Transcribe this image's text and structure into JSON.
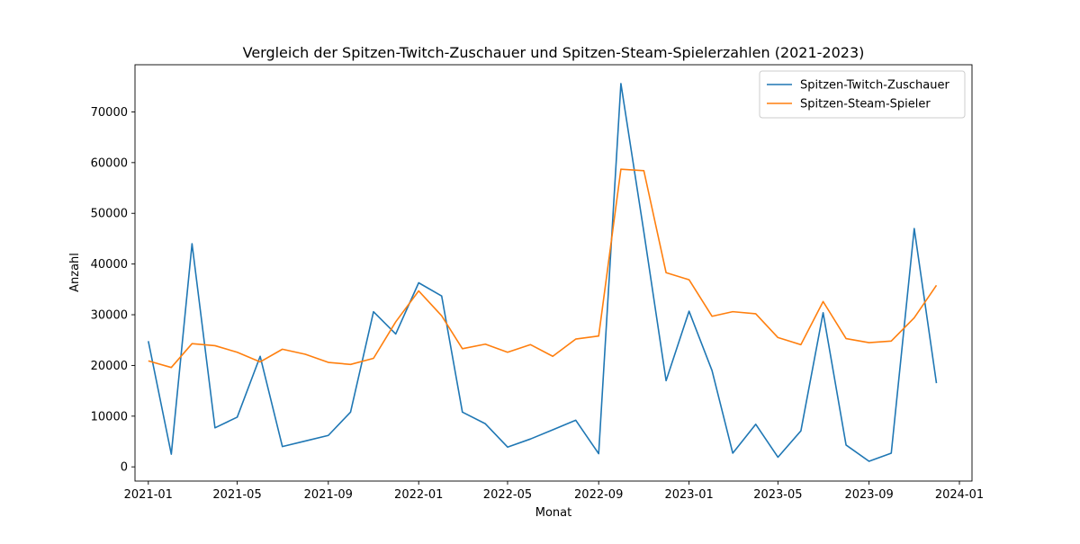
{
  "chart_data": {
    "type": "line",
    "title": "Vergleich der Spitzen-Twitch-Zuschauer und Spitzen-Steam-Spielerzahlen (2021-2023)",
    "xlabel": "Monat",
    "ylabel": "Anzahl",
    "x": [
      "2021-01",
      "2021-02",
      "2021-03",
      "2021-04",
      "2021-05",
      "2021-06",
      "2021-07",
      "2021-08",
      "2021-09",
      "2021-10",
      "2021-11",
      "2021-12",
      "2022-01",
      "2022-02",
      "2022-03",
      "2022-04",
      "2022-05",
      "2022-06",
      "2022-07",
      "2022-08",
      "2022-09",
      "2022-10",
      "2022-11",
      "2022-12",
      "2023-01",
      "2023-02",
      "2023-03",
      "2023-04",
      "2023-05",
      "2023-06",
      "2023-07",
      "2023-08",
      "2023-09",
      "2023-10",
      "2023-11",
      "2023-12"
    ],
    "xlim": [
      "2020-12-14",
      "2024-01-18"
    ],
    "ylim": [
      -2800,
      79300
    ],
    "x_ticks": [
      {
        "date": "2021-01-01",
        "label": "2021-01"
      },
      {
        "date": "2021-05-01",
        "label": "2021-05"
      },
      {
        "date": "2021-09-01",
        "label": "2021-09"
      },
      {
        "date": "2022-01-01",
        "label": "2022-01"
      },
      {
        "date": "2022-05-01",
        "label": "2022-05"
      },
      {
        "date": "2022-09-01",
        "label": "2022-09"
      },
      {
        "date": "2023-01-01",
        "label": "2023-01"
      },
      {
        "date": "2023-05-01",
        "label": "2023-05"
      },
      {
        "date": "2023-09-01",
        "label": "2023-09"
      },
      {
        "date": "2024-01-01",
        "label": "2024-01"
      }
    ],
    "y_ticks": [
      0,
      10000,
      20000,
      30000,
      40000,
      50000,
      60000,
      70000
    ],
    "grid": false,
    "legend_position": "top-right",
    "series": [
      {
        "name": "Spitzen-Twitch-Zuschauer",
        "color": "#1f77b4",
        "values": [
          24800,
          2500,
          44000,
          7700,
          9800,
          21800,
          4000,
          5100,
          6200,
          10800,
          30600,
          26200,
          36300,
          33700,
          10800,
          8500,
          3900,
          5500,
          7300,
          9200,
          2600,
          75600,
          46300,
          17000,
          30700,
          19000,
          2700,
          8400,
          1900,
          7100,
          30400,
          4300,
          1100,
          2700,
          47000,
          16500
        ]
      },
      {
        "name": "Spitzen-Steam-Spieler",
        "color": "#ff7f0e",
        "values": [
          20900,
          19600,
          24300,
          23900,
          22600,
          20700,
          23200,
          22200,
          20600,
          20200,
          21400,
          28600,
          34700,
          29800,
          23300,
          24200,
          22600,
          24100,
          21800,
          25200,
          25800,
          58700,
          58400,
          38300,
          36900,
          29700,
          30600,
          30200,
          25500,
          24100,
          32600,
          25300,
          24500,
          24800,
          29400,
          35800
        ]
      }
    ]
  }
}
